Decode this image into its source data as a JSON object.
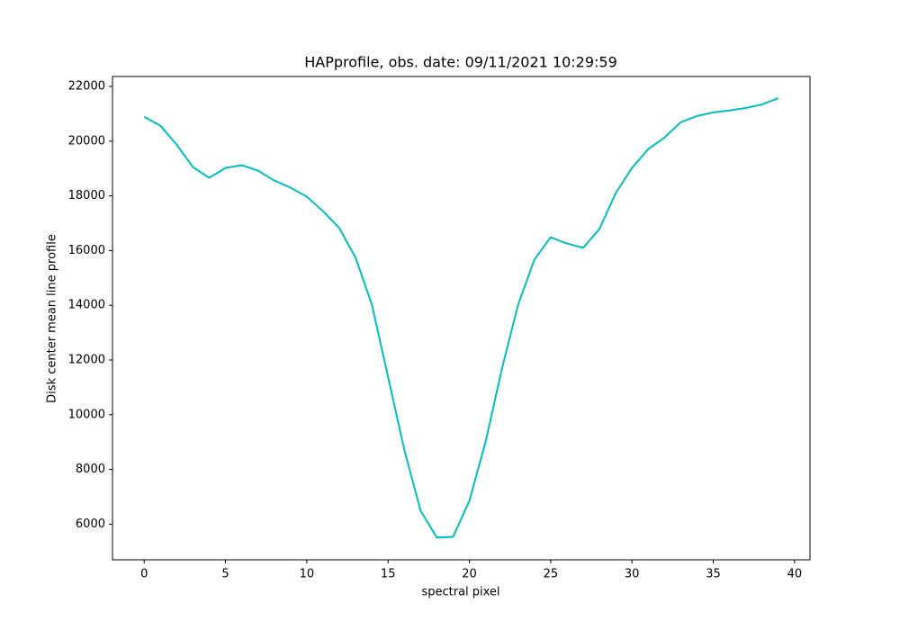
{
  "chart_data": {
    "type": "line",
    "title": "HAPprofile, obs. date: 09/11/2021 10:29:59",
    "xlabel": "spectral pixel",
    "ylabel": "Disk center mean line profile",
    "x": [
      0,
      1,
      2,
      3,
      4,
      5,
      6,
      7,
      8,
      9,
      10,
      11,
      12,
      13,
      14,
      15,
      16,
      17,
      18,
      19,
      20,
      21,
      22,
      23,
      24,
      25,
      26,
      27,
      28,
      29,
      30,
      31,
      32,
      33,
      34,
      35,
      36,
      37,
      38,
      39
    ],
    "series": [
      {
        "color": "#00bfbf",
        "values": [
          20890,
          20560,
          19870,
          19050,
          18660,
          19020,
          19120,
          18920,
          18560,
          18300,
          17970,
          17440,
          16820,
          15740,
          14030,
          11380,
          8720,
          6490,
          5510,
          5540,
          6850,
          9020,
          11670,
          14030,
          15670,
          16490,
          16260,
          16100,
          16790,
          18100,
          19020,
          19710,
          20130,
          20690,
          20920,
          21050,
          21120,
          21210,
          21340,
          21570
        ]
      }
    ],
    "xlim": [
      -1.95,
      40.95
    ],
    "ylim": [
      4697,
      22363
    ],
    "xticks": [
      0,
      5,
      10,
      15,
      20,
      25,
      30,
      35,
      40
    ],
    "yticks": [
      6000,
      8000,
      10000,
      12000,
      14000,
      16000,
      18000,
      20000,
      22000
    ]
  }
}
